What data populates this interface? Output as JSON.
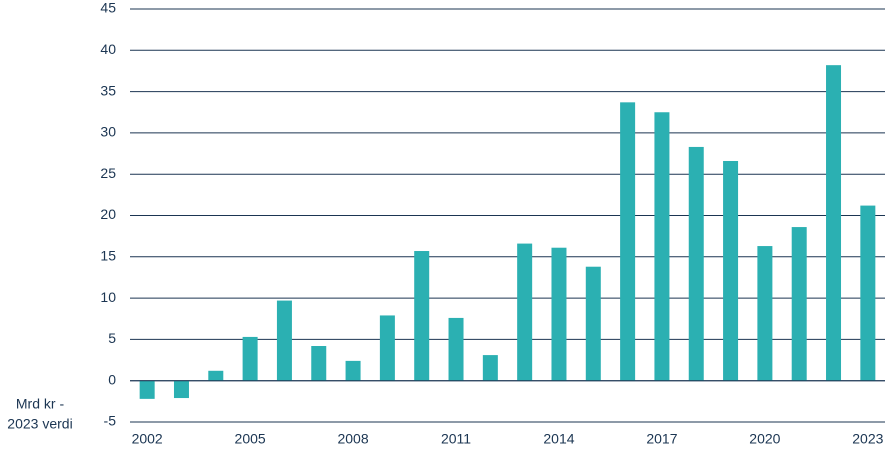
{
  "chart_data": {
    "type": "bar",
    "y_label": [
      "Mrd kr -",
      "2023 verdi"
    ],
    "categories": [
      "2002",
      null,
      null,
      "2005",
      null,
      null,
      "2008",
      null,
      null,
      "2011",
      null,
      null,
      "2014",
      null,
      null,
      "2017",
      null,
      null,
      "2020",
      null,
      null,
      "2023"
    ],
    "values": [
      -2.2,
      -2.1,
      1.2,
      5.3,
      9.7,
      4.2,
      2.4,
      7.9,
      15.7,
      7.6,
      3.1,
      16.6,
      16.1,
      13.8,
      33.7,
      32.5,
      28.3,
      26.6,
      16.3,
      18.6,
      38.2,
      21.2
    ],
    "color": "#2bb0b2",
    "ylim": [
      -5,
      45
    ],
    "yticks": [
      -5,
      0,
      5,
      10,
      15,
      20,
      25,
      30,
      35,
      40,
      45
    ],
    "grid": true
  }
}
